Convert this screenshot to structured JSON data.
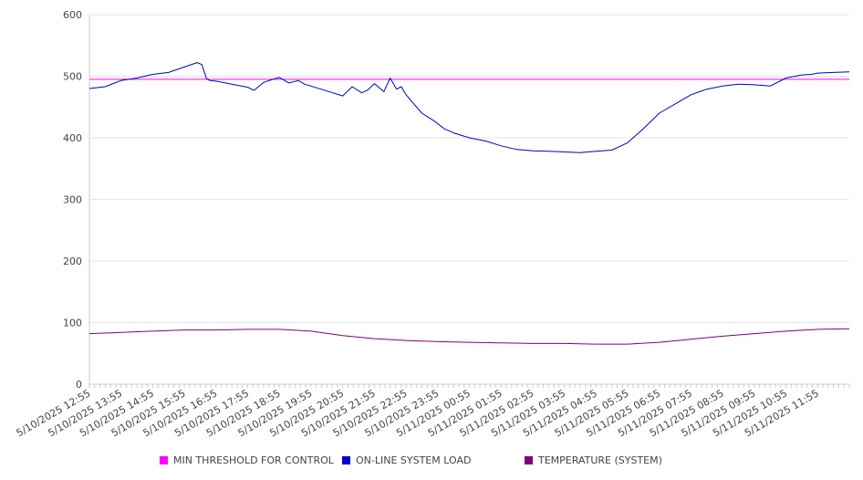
{
  "chart_data": {
    "type": "line",
    "title": "",
    "xlabel": "",
    "ylabel": "",
    "ylim": [
      0,
      600
    ],
    "y_ticks": [
      0,
      100,
      200,
      300,
      400,
      500,
      600
    ],
    "grid": true,
    "legend_position": "bottom",
    "x_tick_labels": [
      "5/10/2025 12:55",
      "5/10/2025 13:55",
      "5/10/2025 14:55",
      "5/10/2025 15:55",
      "5/10/2025 16:55",
      "5/10/2025 17:55",
      "5/10/2025 18:55",
      "5/10/2025 19:55",
      "5/10/2025 20:55",
      "5/10/2025 21:55",
      "5/10/2025 22:55",
      "5/10/2025 23:55",
      "5/11/2025 00:55",
      "5/11/2025 01:55",
      "5/11/2025 02:55",
      "5/11/2025 03:55",
      "5/11/2025 04:55",
      "5/11/2025 05:55",
      "5/11/2025 06:55",
      "5/11/2025 07:55",
      "5/11/2025 08:55",
      "5/11/2025 09:55",
      "5/11/2025 10:55",
      "5/11/2025 11:55"
    ],
    "x_range_hours": [
      0,
      24
    ],
    "series": [
      {
        "name": "MIN THRESHOLD FOR CONTROL",
        "color": "#ff00ff",
        "x": [
          0,
          24
        ],
        "values": [
          495,
          495
        ]
      },
      {
        "name": "ON-LINE SYSTEM LOAD",
        "color": "#0000cc",
        "x": [
          0,
          0.5,
          1,
          1.5,
          2,
          2.5,
          3,
          3.4,
          3.55,
          3.7,
          3.8,
          4,
          4.5,
          5,
          5.2,
          5.5,
          5.8,
          6,
          6.3,
          6.6,
          6.8,
          7,
          7.5,
          8,
          8.3,
          8.6,
          8.8,
          9,
          9.3,
          9.5,
          9.7,
          9.85,
          10,
          10.2,
          10.5,
          10.9,
          11.2,
          11.5,
          12,
          12.5,
          13,
          13.5,
          14,
          14.5,
          15,
          15.5,
          16,
          16.5,
          17,
          17.5,
          18,
          18.5,
          19,
          19.5,
          20,
          20.5,
          21,
          21.5,
          22,
          22.3,
          22.5,
          22.8,
          23,
          23.5,
          24
        ],
        "values": [
          480,
          483,
          493,
          497,
          503,
          506,
          515,
          522,
          519,
          496,
          493,
          492,
          487,
          482,
          477,
          490,
          495,
          498,
          489,
          493,
          487,
          484,
          476,
          468,
          483,
          473,
          478,
          488,
          475,
          497,
          479,
          483,
          470,
          458,
          440,
          427,
          415,
          408,
          400,
          395,
          387,
          381,
          379,
          378,
          377,
          376,
          378,
          380,
          392,
          415,
          440,
          455,
          470,
          479,
          484,
          487,
          486,
          484,
          497,
          500,
          502,
          503,
          505,
          506,
          507
        ]
      },
      {
        "name": "TEMPERATURE (SYSTEM)",
        "color": "#800080",
        "x": [
          0,
          1,
          2,
          3,
          4,
          5,
          6,
          7,
          8,
          9,
          10,
          11,
          12,
          13,
          14,
          15,
          16,
          17,
          18,
          19,
          20,
          21,
          22,
          23,
          24
        ],
        "values": [
          82,
          84,
          86,
          88,
          88,
          89,
          89,
          86,
          79,
          74,
          71,
          69,
          68,
          67,
          66,
          66,
          65,
          65,
          68,
          73,
          78,
          82,
          86,
          89,
          90
        ]
      }
    ]
  }
}
